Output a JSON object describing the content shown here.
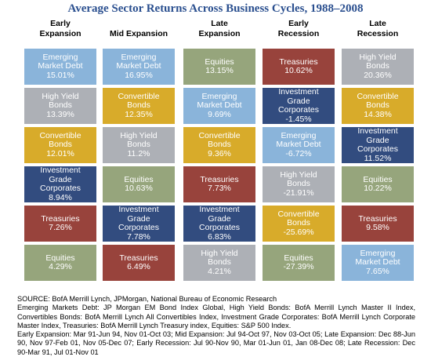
{
  "title": "Average Sector Returns Across Business Cycles, 1988–2008",
  "colors": {
    "Emerging Market Debt": "#8ab4da",
    "High Yield Bonds": "#adb0b6",
    "Convertible Bonds": "#d8ab2a",
    "Investment Grade Corporates": "#324c7f",
    "Treasuries": "#98433c",
    "Equities": "#96a57c"
  },
  "columns": [
    {
      "header": "Early\nExpansion",
      "cells": [
        {
          "label": "Emerging\nMarket Debt",
          "value": "15.01%",
          "sector": "Emerging Market Debt"
        },
        {
          "label": "High Yield\nBonds",
          "value": "13.39%",
          "sector": "High Yield Bonds"
        },
        {
          "label": "Convertible\nBonds",
          "value": "12.01%",
          "sector": "Convertible Bonds"
        },
        {
          "label": "Investment\nGrade\nCorporates",
          "value": "8.94%",
          "sector": "Investment Grade Corporates"
        },
        {
          "label": "Treasuries",
          "value": "7.26%",
          "sector": "Treasuries"
        },
        {
          "label": "Equities",
          "value": "4.29%",
          "sector": "Equities"
        }
      ]
    },
    {
      "header": "Mid Expansion",
      "cells": [
        {
          "label": "Emerging\nMarket Debt",
          "value": "16.95%",
          "sector": "Emerging Market Debt"
        },
        {
          "label": "Convertible\nBonds",
          "value": "12.35%",
          "sector": "Convertible Bonds"
        },
        {
          "label": "High Yield\nBonds",
          "value": "11.2%",
          "sector": "High Yield Bonds"
        },
        {
          "label": "Equities",
          "value": "10.63%",
          "sector": "Equities"
        },
        {
          "label": "Investment\nGrade\nCorporates",
          "value": "7.78%",
          "sector": "Investment Grade Corporates"
        },
        {
          "label": "Treasuries",
          "value": "6.49%",
          "sector": "Treasuries"
        }
      ]
    },
    {
      "header": "Late\nExpansion",
      "cells": [
        {
          "label": "Equities",
          "value": "13.15%",
          "sector": "Equities"
        },
        {
          "label": "Emerging\nMarket Debt",
          "value": "9.69%",
          "sector": "Emerging Market Debt"
        },
        {
          "label": "Convertible\nBonds",
          "value": "9.36%",
          "sector": "Convertible Bonds"
        },
        {
          "label": "Treasuries",
          "value": "7.73%",
          "sector": "Treasuries"
        },
        {
          "label": "Investment\nGrade\nCorporates",
          "value": "6.83%",
          "sector": "Investment Grade Corporates"
        },
        {
          "label": "High Yield\nBonds",
          "value": "4.21%",
          "sector": "High Yield Bonds"
        }
      ]
    },
    {
      "header": "Early\nRecession",
      "cells": [
        {
          "label": "Treasuries",
          "value": "10.62%",
          "sector": "Treasuries"
        },
        {
          "label": "Investment\nGrade\nCorporates",
          "value": "-1.45%",
          "sector": "Investment Grade Corporates"
        },
        {
          "label": "Emerging\nMarket Debt",
          "value": "-6.72%",
          "sector": "Emerging Market Debt"
        },
        {
          "label": "High Yield\nBonds",
          "value": "-21.91%",
          "sector": "High Yield Bonds"
        },
        {
          "label": "Convertible\nBonds",
          "value": "-25.69%",
          "sector": "Convertible Bonds"
        },
        {
          "label": "Equities",
          "value": "-27.39%",
          "sector": "Equities"
        }
      ]
    },
    {
      "header": "Late\nRecession",
      "cells": [
        {
          "label": "High Yield\nBonds",
          "value": "20.36%",
          "sector": "High Yield Bonds"
        },
        {
          "label": "Convertible\nBonds",
          "value": "14.38%",
          "sector": "Convertible Bonds"
        },
        {
          "label": "Investment\nGrade\nCorporates",
          "value": "11.52%",
          "sector": "Investment Grade Corporates"
        },
        {
          "label": "Equities",
          "value": "10.22%",
          "sector": "Equities"
        },
        {
          "label": "Treasuries",
          "value": "9.58%",
          "sector": "Treasuries"
        },
        {
          "label": "Emerging\nMarket Debt",
          "value": "7.65%",
          "sector": "Emerging Market Debt"
        }
      ]
    }
  ],
  "source": [
    "SOURCE: BofA Merrill Lynch, JPMorgan, National Bureau of Economic Research",
    "Emerging Markets Debt: JP Morgan EM Bond Index Global, High Yield Bonds: BofA Merrill Lynch Master II Index, Convertibles Bonds: BofA Merrill Lynch All Convertibles Index, Investment Grade Corporates: BofA Merrill Lynch Corporate Master Index, Treasuries: BofA Merrill Lynch Treasury index, Equities: S&P 500 Index.",
    "Early Expansion: Mar 91-Jun 94, Nov 01-Oct 03; Mid Expansion: Jul 94-Oct 97, Nov 03-Oct 05; Late Expansion: Dec 88-Jun 90, Nov 97-Feb 01, Nov 05-Dec 07; Early Recession: Jul 90-Nov 90, Mar 01-Jun 01, Jan 08-Dec 08; Late Recession: Dec 90-Mar 91, Jul 01-Nov 01"
  ],
  "chart_data": {
    "type": "table",
    "title": "Average Sector Returns Across Business Cycles, 1988–2008",
    "categories": [
      "Early Expansion",
      "Mid Expansion",
      "Late Expansion",
      "Early Recession",
      "Late Recession"
    ],
    "series": [
      {
        "name": "Emerging Market Debt",
        "values": [
          15.01,
          16.95,
          9.69,
          -6.72,
          7.65
        ]
      },
      {
        "name": "High Yield Bonds",
        "values": [
          13.39,
          11.2,
          4.21,
          -21.91,
          20.36
        ]
      },
      {
        "name": "Convertible Bonds",
        "values": [
          12.01,
          12.35,
          9.36,
          -25.69,
          14.38
        ]
      },
      {
        "name": "Investment Grade Corporates",
        "values": [
          8.94,
          7.78,
          6.83,
          -1.45,
          11.52
        ]
      },
      {
        "name": "Treasuries",
        "values": [
          7.26,
          6.49,
          7.73,
          10.62,
          9.58
        ]
      },
      {
        "name": "Equities",
        "values": [
          4.29,
          10.63,
          13.15,
          -27.39,
          10.22
        ]
      }
    ]
  }
}
